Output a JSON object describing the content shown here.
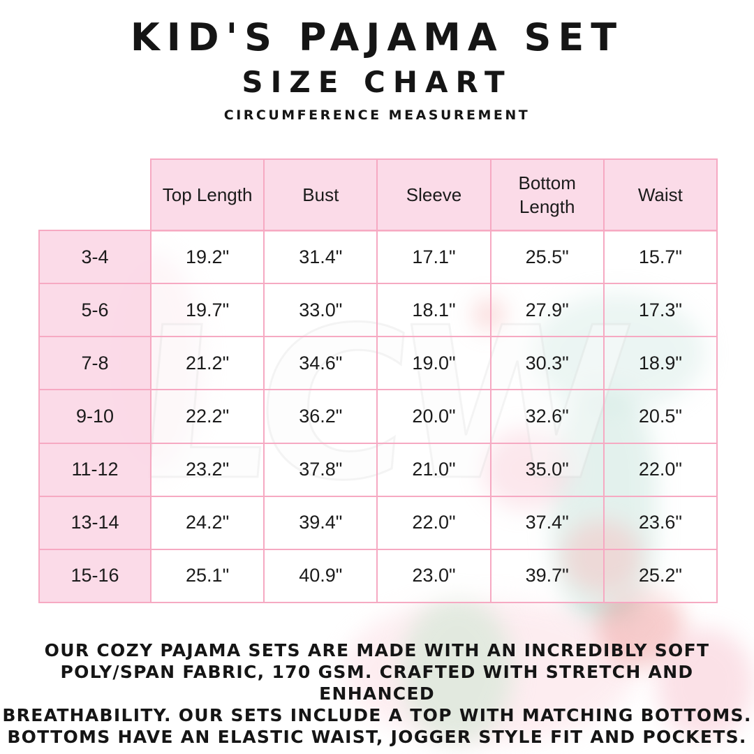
{
  "header": {
    "title": "KID'S PAJAMA SET",
    "subtitle": "SIZE CHART",
    "note": "CIRCUMFERENCE MEASUREMENT"
  },
  "watermark": "LCW",
  "colors": {
    "border_pink": "#f6a9c2",
    "cell_pink": "#fbd8e6",
    "text": "#151515"
  },
  "chart_data": {
    "type": "table",
    "columns": [
      "Top Length",
      "Bust",
      "Sleeve",
      "Bottom Length",
      "Waist"
    ],
    "rows": [
      {
        "size": "3-4",
        "values": [
          "19.2\"",
          "31.4\"",
          "17.1\"",
          "25.5\"",
          "15.7\""
        ]
      },
      {
        "size": "5-6",
        "values": [
          "19.7\"",
          "33.0\"",
          "18.1\"",
          "27.9\"",
          "17.3\""
        ]
      },
      {
        "size": "7-8",
        "values": [
          "21.2\"",
          "34.6\"",
          "19.0\"",
          "30.3\"",
          "18.9\""
        ]
      },
      {
        "size": "9-10",
        "values": [
          "22.2\"",
          "36.2\"",
          "20.0\"",
          "32.6\"",
          "20.5\""
        ]
      },
      {
        "size": "11-12",
        "values": [
          "23.2\"",
          "37.8\"",
          "21.0\"",
          "35.0\"",
          "22.0\""
        ]
      },
      {
        "size": "13-14",
        "values": [
          "24.2\"",
          "39.4\"",
          "22.0\"",
          "37.4\"",
          "23.6\""
        ]
      },
      {
        "size": "15-16",
        "values": [
          "25.1\"",
          "40.9\"",
          "23.0\"",
          "39.7\"",
          "25.2\""
        ]
      }
    ]
  },
  "description": {
    "lines": [
      "OUR COZY PAJAMA SETS ARE MADE WITH AN INCREDIBLY SOFT",
      "POLY/SPAN FABRIC, 170 GSM. CRAFTED WITH STRETCH AND ENHANCED",
      "BREATHABILITY. OUR SETS INCLUDE A TOP WITH MATCHING BOTTOMS.",
      "BOTTOMS HAVE AN ELASTIC WAIST, JOGGER STYLE FIT AND POCKETS."
    ]
  }
}
